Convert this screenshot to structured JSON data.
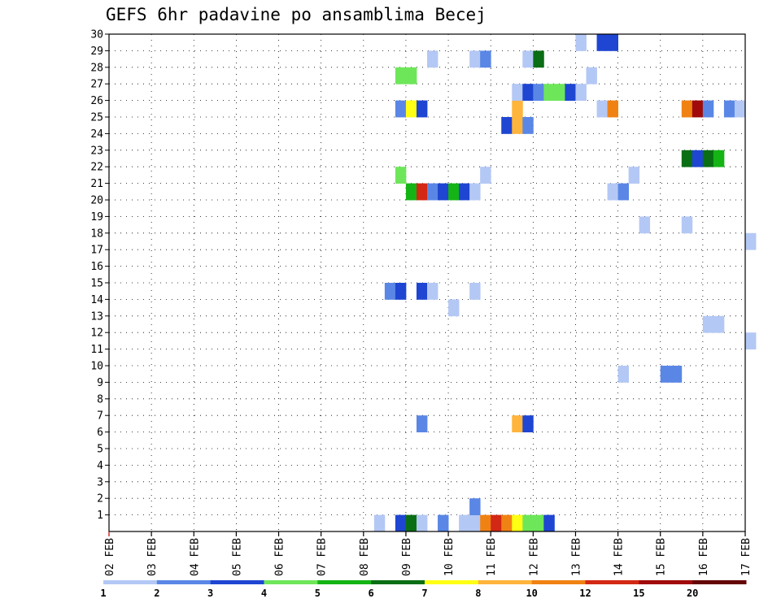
{
  "chart_data": {
    "type": "heatmap",
    "title": "GEFS 6hr padavine po ansamblima Becej",
    "x_tick_labels": [
      "02 FEB",
      "03 FEB",
      "04 FEB",
      "05 FEB",
      "06 FEB",
      "07 FEB",
      "08 FEB",
      "09 FEB",
      "10 FEB",
      "11 FEB",
      "12 FEB",
      "13 FEB",
      "14 FEB",
      "15 FEB",
      "16 FEB",
      "17 FEB"
    ],
    "y_tick_labels": [
      "1",
      "2",
      "3",
      "4",
      "5",
      "6",
      "7",
      "8",
      "9",
      "10",
      "11",
      "12",
      "13",
      "14",
      "15",
      "16",
      "17",
      "18",
      "19",
      "20",
      "21",
      "22",
      "23",
      "24",
      "25",
      "26",
      "27",
      "28",
      "29",
      "30"
    ],
    "x_range_days": [
      0,
      15
    ],
    "time_step_days": 0.25,
    "y_range": [
      0,
      30
    ],
    "grid": "dotted",
    "colorbar": {
      "labels": [
        "1",
        "2",
        "3",
        "4",
        "5",
        "6",
        "7",
        "8",
        "10",
        "12",
        "15",
        "20"
      ],
      "colors": [
        "#b4c8f5",
        "#5a87e6",
        "#1e46d2",
        "#6ee65a",
        "#14b414",
        "#0a6e14",
        "#ffff14",
        "#ffb43c",
        "#f08214",
        "#d22814",
        "#a00a0a",
        "#640505"
      ]
    },
    "cells": [
      {
        "day": 6.25,
        "member": 0,
        "color": "#b4c8f5"
      },
      {
        "day": 6.75,
        "member": 0,
        "color": "#1e46d2"
      },
      {
        "day": 7.0,
        "member": 0,
        "color": "#0a6e14"
      },
      {
        "day": 7.25,
        "member": 0,
        "color": "#b4c8f5"
      },
      {
        "day": 7.75,
        "member": 0,
        "color": "#5a87e6"
      },
      {
        "day": 8.25,
        "member": 0,
        "color": "#b4c8f5"
      },
      {
        "day": 8.5,
        "member": 0,
        "color": "#b4c8f5"
      },
      {
        "day": 8.75,
        "member": 0,
        "color": "#f08214"
      },
      {
        "day": 9.0,
        "member": 0,
        "color": "#d22814"
      },
      {
        "day": 9.25,
        "member": 0,
        "color": "#f08214"
      },
      {
        "day": 9.5,
        "member": 0,
        "color": "#ffff14"
      },
      {
        "day": 9.75,
        "member": 0,
        "color": "#6ee65a"
      },
      {
        "day": 10.0,
        "member": 0,
        "color": "#6ee65a"
      },
      {
        "day": 10.25,
        "member": 0,
        "color": "#1e46d2"
      },
      {
        "day": 8.5,
        "member": 1,
        "color": "#5a87e6"
      },
      {
        "day": 7.25,
        "member": 6,
        "color": "#5a87e6"
      },
      {
        "day": 9.5,
        "member": 6,
        "color": "#ffb43c"
      },
      {
        "day": 9.75,
        "member": 6,
        "color": "#1e46d2"
      },
      {
        "day": 12.0,
        "member": 9,
        "color": "#b4c8f5"
      },
      {
        "day": 13.0,
        "member": 9,
        "color": "#5a87e6"
      },
      {
        "day": 13.25,
        "member": 9,
        "color": "#5a87e6"
      },
      {
        "day": 15.0,
        "member": 11,
        "color": "#b4c8f5"
      },
      {
        "day": 14.0,
        "member": 12,
        "color": "#b4c8f5"
      },
      {
        "day": 14.25,
        "member": 12,
        "color": "#b4c8f5"
      },
      {
        "day": 8.0,
        "member": 13,
        "color": "#b4c8f5"
      },
      {
        "day": 6.5,
        "member": 14,
        "color": "#5a87e6"
      },
      {
        "day": 6.75,
        "member": 14,
        "color": "#1e46d2"
      },
      {
        "day": 7.25,
        "member": 14,
        "color": "#1e46d2"
      },
      {
        "day": 7.5,
        "member": 14,
        "color": "#b4c8f5"
      },
      {
        "day": 8.5,
        "member": 14,
        "color": "#b4c8f5"
      },
      {
        "day": 15.0,
        "member": 17,
        "color": "#b4c8f5"
      },
      {
        "day": 12.5,
        "member": 18,
        "color": "#b4c8f5"
      },
      {
        "day": 13.5,
        "member": 18,
        "color": "#b4c8f5"
      },
      {
        "day": 7.0,
        "member": 20,
        "color": "#14b414"
      },
      {
        "day": 7.25,
        "member": 20,
        "color": "#d22814"
      },
      {
        "day": 7.5,
        "member": 20,
        "color": "#5a87e6"
      },
      {
        "day": 7.75,
        "member": 20,
        "color": "#1e46d2"
      },
      {
        "day": 8.0,
        "member": 20,
        "color": "#14b414"
      },
      {
        "day": 8.25,
        "member": 20,
        "color": "#1e46d2"
      },
      {
        "day": 8.5,
        "member": 20,
        "color": "#b4c8f5"
      },
      {
        "day": 11.75,
        "member": 20,
        "color": "#b4c8f5"
      },
      {
        "day": 12.0,
        "member": 20,
        "color": "#5a87e6"
      },
      {
        "day": 6.75,
        "member": 21,
        "color": "#6ee65a"
      },
      {
        "day": 8.75,
        "member": 21,
        "color": "#b4c8f5"
      },
      {
        "day": 12.25,
        "member": 21,
        "color": "#b4c8f5"
      },
      {
        "day": 13.5,
        "member": 22,
        "color": "#0a6e14"
      },
      {
        "day": 13.75,
        "member": 22,
        "color": "#1e46d2"
      },
      {
        "day": 14.0,
        "member": 22,
        "color": "#0a6e14"
      },
      {
        "day": 14.25,
        "member": 22,
        "color": "#14b414"
      },
      {
        "day": 9.25,
        "member": 24,
        "color": "#1e46d2"
      },
      {
        "day": 9.5,
        "member": 24,
        "color": "#ffb43c"
      },
      {
        "day": 9.75,
        "member": 24,
        "color": "#5a87e6"
      },
      {
        "day": 6.75,
        "member": 25,
        "color": "#5a87e6"
      },
      {
        "day": 7.0,
        "member": 25,
        "color": "#ffff14"
      },
      {
        "day": 7.25,
        "member": 25,
        "color": "#1e46d2"
      },
      {
        "day": 9.5,
        "member": 25,
        "color": "#ffb43c"
      },
      {
        "day": 11.5,
        "member": 25,
        "color": "#b4c8f5"
      },
      {
        "day": 11.75,
        "member": 25,
        "color": "#f08214"
      },
      {
        "day": 13.5,
        "member": 25,
        "color": "#f08214"
      },
      {
        "day": 13.75,
        "member": 25,
        "color": "#a00a0a"
      },
      {
        "day": 14.0,
        "member": 25,
        "color": "#5a87e6"
      },
      {
        "day": 14.5,
        "member": 25,
        "color": "#5a87e6"
      },
      {
        "day": 14.75,
        "member": 25,
        "color": "#b4c8f5"
      },
      {
        "day": 9.5,
        "member": 26,
        "color": "#b4c8f5"
      },
      {
        "day": 9.75,
        "member": 26,
        "color": "#1e46d2"
      },
      {
        "day": 10.0,
        "member": 26,
        "color": "#5a87e6"
      },
      {
        "day": 10.25,
        "member": 26,
        "color": "#6ee65a"
      },
      {
        "day": 10.5,
        "member": 26,
        "color": "#6ee65a"
      },
      {
        "day": 10.75,
        "member": 26,
        "color": "#1e46d2"
      },
      {
        "day": 11.0,
        "member": 26,
        "color": "#b4c8f5"
      },
      {
        "day": 11.25,
        "member": 27,
        "color": "#b4c8f5"
      },
      {
        "day": 6.75,
        "member": 27,
        "color": "#6ee65a"
      },
      {
        "day": 7.0,
        "member": 27,
        "color": "#6ee65a"
      },
      {
        "day": 7.5,
        "member": 28,
        "color": "#b4c8f5"
      },
      {
        "day": 8.5,
        "member": 28,
        "color": "#b4c8f5"
      },
      {
        "day": 8.75,
        "member": 28,
        "color": "#5a87e6"
      },
      {
        "day": 9.75,
        "member": 28,
        "color": "#b4c8f5"
      },
      {
        "day": 10.0,
        "member": 28,
        "color": "#0a6e14"
      },
      {
        "day": 11.0,
        "member": 29,
        "color": "#b4c8f5"
      },
      {
        "day": 11.5,
        "member": 29,
        "color": "#1e46d2"
      },
      {
        "day": 11.75,
        "member": 29,
        "color": "#1e46d2"
      }
    ]
  }
}
